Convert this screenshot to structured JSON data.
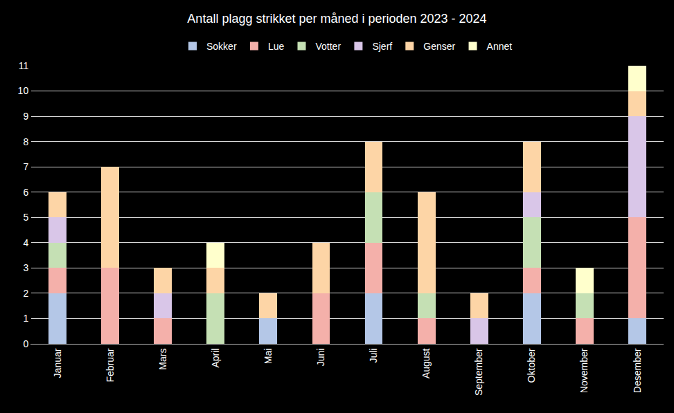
{
  "chart_data": {
    "type": "bar",
    "title": "Antall plagg strikket per måned i perioden 2023 - 2024",
    "categories": [
      "Januar",
      "Februar",
      "Mars",
      "April",
      "Mai",
      "Juni",
      "Juli",
      "August",
      "September",
      "Oktober",
      "November",
      "Desember"
    ],
    "series": [
      {
        "name": "Sokker",
        "color": "#b4c7e7",
        "values": [
          2,
          0,
          0,
          0,
          1,
          0,
          2,
          0,
          0,
          2,
          0,
          1
        ]
      },
      {
        "name": "Lue",
        "color": "#f4b0aa",
        "values": [
          1,
          3,
          1,
          0,
          0,
          2,
          2,
          1,
          0,
          1,
          1,
          4
        ]
      },
      {
        "name": "Votter",
        "color": "#c5e0b4",
        "values": [
          1,
          0,
          0,
          2,
          0,
          0,
          2,
          1,
          0,
          2,
          1,
          0
        ]
      },
      {
        "name": "Sjerf",
        "color": "#d9c6e8",
        "values": [
          1,
          0,
          1,
          0,
          0,
          0,
          0,
          0,
          1,
          1,
          0,
          4
        ]
      },
      {
        "name": "Genser",
        "color": "#fdd5a6",
        "values": [
          1,
          4,
          1,
          1,
          1,
          2,
          2,
          4,
          1,
          2,
          0,
          1
        ]
      },
      {
        "name": "Annet",
        "color": "#ffffcc",
        "values": [
          0,
          0,
          0,
          1,
          0,
          0,
          0,
          0,
          0,
          0,
          1,
          1
        ]
      }
    ],
    "stacked": true,
    "ylim": [
      0,
      11
    ],
    "yticks": [
      0,
      1,
      2,
      3,
      4,
      5,
      6,
      7,
      8,
      9,
      10,
      11
    ],
    "grid": true,
    "legend": "top"
  }
}
